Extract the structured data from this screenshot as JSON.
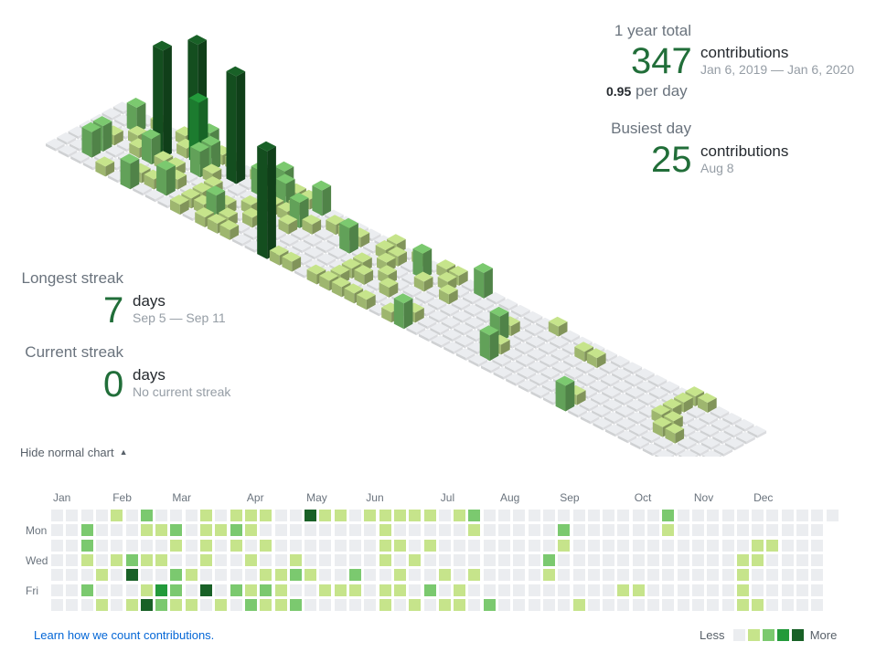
{
  "summary": {
    "total_label": "1 year total",
    "total_value": "347",
    "total_unit": "contributions",
    "total_range": "Jan 6, 2019 — Jan 6, 2020",
    "per_day_value": "0.95",
    "per_day_unit": "per day",
    "busiest_label": "Busiest day",
    "busiest_value": "25",
    "busiest_unit": "contributions",
    "busiest_date": "Aug 8"
  },
  "streaks": {
    "longest_label": "Longest streak",
    "longest_value": "7",
    "longest_unit": "days",
    "longest_range": "Sep 5 — Sep 11",
    "current_label": "Current streak",
    "current_value": "0",
    "current_unit": "days",
    "current_range": "No current streak"
  },
  "toggle": {
    "label": "Hide normal chart",
    "caret": "▲"
  },
  "calendar": {
    "months": [
      "Jan",
      "Feb",
      "Mar",
      "Apr",
      "May",
      "Jun",
      "Jul",
      "Aug",
      "Sep",
      "Oct",
      "Nov",
      "Dec"
    ],
    "days": [
      "Mon",
      "Wed",
      "Fri"
    ],
    "levels": [
      "#ebedf0",
      "#c6e48b",
      "#7bc96f",
      "#239a3b",
      "#196127"
    ],
    "active": [
      [
        29,
        1,
        1
      ],
      [
        29,
        3,
        1
      ],
      [
        29,
        5,
        1
      ],
      [
        32,
        1,
        2
      ],
      [
        32,
        2,
        2
      ],
      [
        32,
        3,
        1
      ],
      [
        32,
        5,
        2
      ],
      [
        33,
        4,
        1
      ],
      [
        33,
        6,
        1
      ],
      [
        34,
        0,
        1
      ],
      [
        34,
        3,
        1
      ],
      [
        35,
        3,
        2
      ],
      [
        35,
        4,
        4
      ],
      [
        35,
        6,
        1
      ],
      [
        36,
        0,
        2
      ],
      [
        36,
        1,
        1
      ],
      [
        36,
        3,
        1
      ],
      [
        36,
        5,
        1
      ],
      [
        36,
        6,
        4
      ],
      [
        37,
        1,
        1
      ],
      [
        37,
        3,
        1
      ],
      [
        37,
        5,
        3
      ],
      [
        37,
        6,
        2
      ],
      [
        38,
        1,
        2
      ],
      [
        38,
        2,
        1
      ],
      [
        38,
        4,
        2
      ],
      [
        38,
        5,
        2
      ],
      [
        38,
        6,
        1
      ],
      [
        39,
        4,
        1
      ],
      [
        39,
        6,
        1
      ],
      [
        40,
        0,
        1
      ],
      [
        40,
        1,
        1
      ],
      [
        40,
        2,
        1
      ],
      [
        40,
        3,
        1
      ],
      [
        40,
        5,
        4
      ],
      [
        41,
        1,
        1
      ],
      [
        41,
        6,
        1
      ],
      [
        42,
        0,
        1
      ],
      [
        42,
        1,
        2
      ],
      [
        42,
        2,
        1
      ],
      [
        42,
        5,
        2
      ],
      [
        43,
        0,
        1
      ],
      [
        43,
        1,
        1
      ],
      [
        43,
        3,
        1
      ],
      [
        43,
        5,
        1
      ],
      [
        43,
        6,
        2
      ],
      [
        44,
        0,
        1
      ],
      [
        44,
        2,
        1
      ],
      [
        44,
        4,
        1
      ],
      [
        44,
        5,
        2
      ],
      [
        44,
        6,
        1
      ],
      [
        45,
        4,
        1
      ],
      [
        45,
        5,
        1
      ],
      [
        45,
        6,
        1
      ],
      [
        46,
        3,
        1
      ],
      [
        46,
        4,
        2
      ],
      [
        46,
        6,
        2
      ],
      [
        47,
        0,
        4
      ],
      [
        47,
        4,
        1
      ],
      [
        48,
        0,
        1
      ],
      [
        48,
        5,
        1
      ],
      [
        49,
        0,
        1
      ],
      [
        49,
        5,
        1
      ],
      [
        50,
        4,
        2
      ],
      [
        50,
        5,
        1
      ],
      [
        51,
        0,
        1
      ],
      [
        52,
        0,
        1
      ],
      [
        52,
        1,
        1
      ],
      [
        52,
        2,
        1
      ],
      [
        52,
        3,
        1
      ],
      [
        52,
        5,
        1
      ],
      [
        52,
        6,
        1
      ],
      [
        53,
        0,
        1
      ],
      [
        53,
        2,
        1
      ],
      [
        53,
        4,
        1
      ],
      [
        53,
        5,
        1
      ],
      [
        54,
        0,
        1
      ],
      [
        54,
        3,
        1
      ],
      [
        54,
        6,
        1
      ],
      [
        55,
        0,
        1
      ],
      [
        55,
        2,
        1
      ],
      [
        55,
        5,
        2
      ],
      [
        56,
        4,
        1
      ],
      [
        56,
        6,
        1
      ],
      [
        57,
        0,
        1
      ],
      [
        57,
        5,
        1
      ],
      [
        57,
        6,
        1
      ],
      [
        58,
        0,
        2
      ],
      [
        58,
        1,
        1
      ],
      [
        58,
        4,
        1
      ],
      [
        59,
        6,
        2
      ],
      [
        63,
        3,
        2
      ],
      [
        63,
        4,
        1
      ],
      [
        64,
        1,
        2
      ],
      [
        64,
        2,
        1
      ],
      [
        65,
        6,
        1
      ],
      [
        68,
        5,
        1
      ],
      [
        69,
        5,
        1
      ],
      [
        71,
        0,
        2
      ],
      [
        71,
        1,
        1
      ],
      [
        76,
        3,
        1
      ],
      [
        76,
        4,
        1
      ],
      [
        76,
        5,
        1
      ],
      [
        76,
        6,
        1
      ],
      [
        77,
        2,
        1
      ],
      [
        77,
        3,
        1
      ],
      [
        77,
        6,
        1
      ],
      [
        78,
        2,
        1
      ]
    ]
  },
  "footer": {
    "learn_link": "Learn how we count contributions.",
    "less": "Less",
    "more": "More"
  }
}
